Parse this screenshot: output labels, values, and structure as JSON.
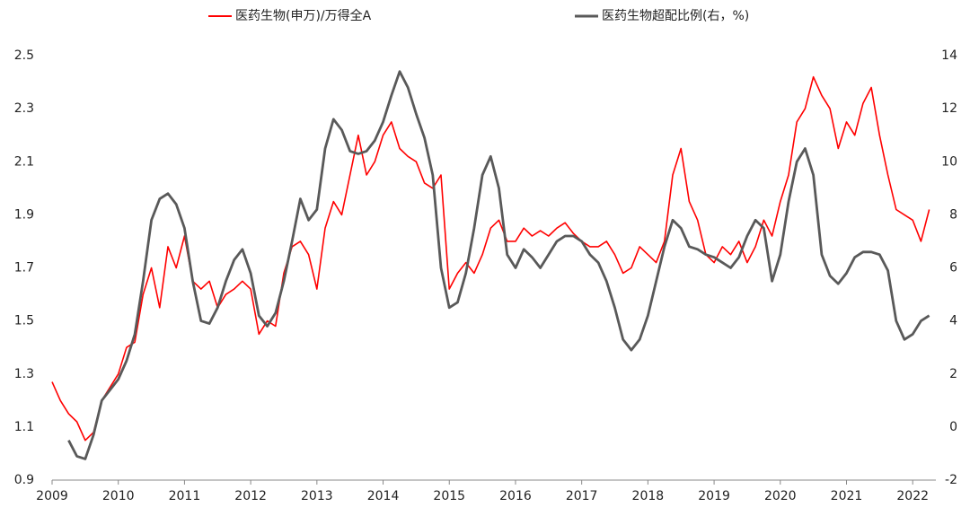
{
  "chart_data": {
    "type": "line",
    "x": [
      2009,
      2009.125,
      2009.25,
      2009.375,
      2009.5,
      2009.625,
      2009.75,
      2009.875,
      2010,
      2010.125,
      2010.25,
      2010.375,
      2010.5,
      2010.625,
      2010.75,
      2010.875,
      2011,
      2011.125,
      2011.25,
      2011.375,
      2011.5,
      2011.625,
      2011.75,
      2011.875,
      2012,
      2012.125,
      2012.25,
      2012.375,
      2012.5,
      2012.625,
      2012.75,
      2012.875,
      2013,
      2013.125,
      2013.25,
      2013.375,
      2013.5,
      2013.625,
      2013.75,
      2013.875,
      2014,
      2014.125,
      2014.25,
      2014.375,
      2014.5,
      2014.625,
      2014.75,
      2014.875,
      2015,
      2015.125,
      2015.25,
      2015.375,
      2015.5,
      2015.625,
      2015.75,
      2015.875,
      2016,
      2016.125,
      2016.25,
      2016.375,
      2016.5,
      2016.625,
      2016.75,
      2016.875,
      2017,
      2017.125,
      2017.25,
      2017.375,
      2017.5,
      2017.625,
      2017.75,
      2017.875,
      2018,
      2018.125,
      2018.25,
      2018.375,
      2018.5,
      2018.625,
      2018.75,
      2018.875,
      2019,
      2019.125,
      2019.25,
      2019.375,
      2019.5,
      2019.625,
      2019.75,
      2019.875,
      2020,
      2020.125,
      2020.25,
      2020.375,
      2020.5,
      2020.625,
      2020.75,
      2020.875,
      2021,
      2021.125,
      2021.25,
      2021.375,
      2021.5,
      2021.625,
      2021.75,
      2021.875,
      2022,
      2022.125,
      2022.25
    ],
    "series": [
      {
        "name": "医药生物(申万)/万得全A",
        "color": "#ff0000",
        "axis": "y",
        "values": [
          1.27,
          1.2,
          1.15,
          1.12,
          1.05,
          1.08,
          1.2,
          1.25,
          1.3,
          1.4,
          1.42,
          1.6,
          1.7,
          1.55,
          1.78,
          1.7,
          1.82,
          1.65,
          1.62,
          1.65,
          1.55,
          1.6,
          1.62,
          1.65,
          1.62,
          1.45,
          1.5,
          1.48,
          1.68,
          1.78,
          1.8,
          1.75,
          1.62,
          1.85,
          1.95,
          1.9,
          2.05,
          2.2,
          2.05,
          2.1,
          2.2,
          2.25,
          2.15,
          2.12,
          2.1,
          2.02,
          2.0,
          2.05,
          1.62,
          1.68,
          1.72,
          1.68,
          1.75,
          1.85,
          1.88,
          1.8,
          1.8,
          1.85,
          1.82,
          1.84,
          1.82,
          1.85,
          1.87,
          1.83,
          1.8,
          1.78,
          1.78,
          1.8,
          1.75,
          1.68,
          1.7,
          1.78,
          1.75,
          1.72,
          1.8,
          2.05,
          2.15,
          1.95,
          1.88,
          1.75,
          1.72,
          1.78,
          1.75,
          1.8,
          1.72,
          1.78,
          1.88,
          1.82,
          1.95,
          2.05,
          2.25,
          2.3,
          2.42,
          2.35,
          2.3,
          2.15,
          2.25,
          2.2,
          2.32,
          2.38,
          2.2,
          2.05,
          1.92,
          1.9,
          1.88,
          1.8,
          1.92
        ]
      },
      {
        "name": "医药生物超配比例(右，%)",
        "color": "#595959",
        "axis": "y2",
        "values": [
          null,
          null,
          -0.5,
          -1.1,
          -1.2,
          -0.3,
          1.0,
          1.4,
          1.8,
          2.5,
          3.5,
          5.5,
          7.8,
          8.6,
          8.8,
          8.4,
          7.5,
          5.5,
          4.0,
          3.9,
          4.5,
          5.5,
          6.3,
          6.7,
          5.8,
          4.2,
          3.8,
          4.3,
          5.5,
          7.0,
          8.6,
          7.8,
          8.2,
          10.5,
          11.6,
          11.2,
          10.4,
          10.3,
          10.4,
          10.8,
          11.5,
          12.5,
          13.4,
          12.8,
          11.8,
          10.9,
          9.5,
          6.0,
          4.5,
          4.7,
          5.8,
          7.5,
          9.5,
          10.2,
          9.0,
          6.5,
          6.0,
          6.7,
          6.4,
          6.0,
          6.5,
          7.0,
          7.2,
          7.2,
          7.0,
          6.5,
          6.2,
          5.5,
          4.5,
          3.3,
          2.9,
          3.3,
          4.2,
          5.5,
          6.8,
          7.8,
          7.5,
          6.8,
          6.7,
          6.5,
          6.4,
          6.2,
          6.0,
          6.4,
          7.2,
          7.8,
          7.5,
          5.5,
          6.5,
          8.5,
          10.0,
          10.5,
          9.5,
          6.5,
          5.7,
          5.4,
          5.8,
          6.4,
          6.6,
          6.6,
          6.5,
          5.9,
          4.0,
          3.3,
          3.5,
          4.0,
          4.2
        ]
      }
    ],
    "xlim": [
      2009,
      2022.35
    ],
    "xticks": [
      2009,
      2010,
      2011,
      2012,
      2013,
      2014,
      2015,
      2016,
      2017,
      2018,
      2019,
      2020,
      2021,
      2022
    ],
    "ylim": [
      0.9,
      2.5
    ],
    "yticks": [
      0.9,
      1.1,
      1.3,
      1.5,
      1.7,
      1.9,
      2.1,
      2.3,
      2.5
    ],
    "y2lim": [
      -2,
      14
    ],
    "y2ticks": [
      -2,
      0,
      2,
      4,
      6,
      8,
      10,
      12,
      14
    ],
    "grid": false
  }
}
